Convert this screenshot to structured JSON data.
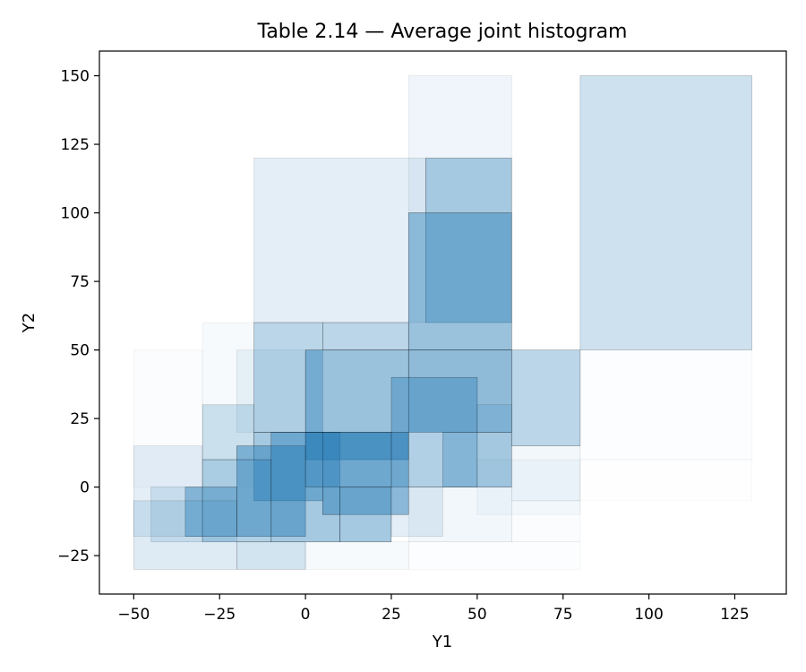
{
  "chart_data": {
    "type": "heatmap",
    "title": "Table 2.14 — Average joint histogram",
    "xlabel": "Y1",
    "ylabel": "Y2",
    "xlim": [
      -60,
      140
    ],
    "ylim": [
      -39,
      159
    ],
    "xticks": [
      -50,
      -25,
      0,
      25,
      50,
      75,
      100,
      125
    ],
    "yticks": [
      -25,
      0,
      25,
      50,
      75,
      100,
      125,
      150
    ],
    "grid": false,
    "legend": "none",
    "color": "#1f77b4",
    "bins": [
      {
        "x0": 80,
        "x1": 130,
        "y0": 50,
        "y1": 150,
        "alpha": 0.22
      },
      {
        "x0": 80,
        "x1": 130,
        "y0": 10,
        "y1": 50,
        "alpha": 0.01
      },
      {
        "x0": 80,
        "x1": 130,
        "y0": -5,
        "y1": 10,
        "alpha": 0.005
      },
      {
        "x0": 30,
        "x1": 60,
        "y0": 100,
        "y1": 150,
        "alpha": 0.07
      },
      {
        "x0": -15,
        "x1": 35,
        "y0": 60,
        "y1": 120,
        "alpha": 0.12
      },
      {
        "x0": 35,
        "x1": 60,
        "y0": 60,
        "y1": 120,
        "alpha": 0.35
      },
      {
        "x0": 30,
        "x1": 60,
        "y0": 50,
        "y1": 100,
        "alpha": 0.45
      },
      {
        "x0": 60,
        "x1": 80,
        "y0": 15,
        "y1": 50,
        "alpha": 0.3
      },
      {
        "x0": 60,
        "x1": 80,
        "y0": -5,
        "y1": 15,
        "alpha": 0.06
      },
      {
        "x0": -30,
        "x1": -15,
        "y0": 0,
        "y1": 60,
        "alpha": 0.04
      },
      {
        "x0": -20,
        "x1": 0,
        "y0": 20,
        "y1": 50,
        "alpha": 0.08
      },
      {
        "x0": -30,
        "x1": -15,
        "y0": 10,
        "y1": 30,
        "alpha": 0.2
      },
      {
        "x0": -50,
        "x1": -30,
        "y0": 0,
        "y1": 50,
        "alpha": 0.02
      },
      {
        "x0": -15,
        "x1": 5,
        "y0": 20,
        "y1": 60,
        "alpha": 0.3
      },
      {
        "x0": 5,
        "x1": 30,
        "y0": 50,
        "y1": 60,
        "alpha": 0.3
      },
      {
        "x0": 0,
        "x1": 30,
        "y0": 10,
        "y1": 50,
        "alpha": 0.45
      },
      {
        "x0": 30,
        "x1": 60,
        "y0": 20,
        "y1": 50,
        "alpha": 0.5
      },
      {
        "x0": 25,
        "x1": 50,
        "y0": 0,
        "y1": 40,
        "alpha": 0.35
      },
      {
        "x0": 40,
        "x1": 60,
        "y0": 0,
        "y1": 20,
        "alpha": 0.3
      },
      {
        "x0": -15,
        "x1": 5,
        "y0": -5,
        "y1": 20,
        "alpha": 0.4
      },
      {
        "x0": -20,
        "x1": 0,
        "y0": -18,
        "y1": 15,
        "alpha": 0.45
      },
      {
        "x0": -10,
        "x1": 10,
        "y0": -20,
        "y1": 20,
        "alpha": 0.4
      },
      {
        "x0": 5,
        "x1": 30,
        "y0": -10,
        "y1": 20,
        "alpha": 0.45
      },
      {
        "x0": 0,
        "x1": 25,
        "y0": 0,
        "y1": 20,
        "alpha": 0.35
      },
      {
        "x0": 10,
        "x1": 25,
        "y0": -20,
        "y1": 0,
        "alpha": 0.4
      },
      {
        "x0": 25,
        "x1": 40,
        "y0": -18,
        "y1": 0,
        "alpha": 0.12
      },
      {
        "x0": -30,
        "x1": -10,
        "y0": -20,
        "y1": 10,
        "alpha": 0.35
      },
      {
        "x0": -35,
        "x1": -20,
        "y0": -18,
        "y1": 0,
        "alpha": 0.4
      },
      {
        "x0": -45,
        "x1": -30,
        "y0": -20,
        "y1": 0,
        "alpha": 0.15
      },
      {
        "x0": -50,
        "x1": -30,
        "y0": -18,
        "y1": 15,
        "alpha": 0.12
      },
      {
        "x0": -50,
        "x1": -20,
        "y0": -30,
        "y1": -5,
        "alpha": 0.15
      },
      {
        "x0": -20,
        "x1": 0,
        "y0": -30,
        "y1": -20,
        "alpha": 0.2
      },
      {
        "x0": 0,
        "x1": 30,
        "y0": -30,
        "y1": -20,
        "alpha": 0.04
      },
      {
        "x0": 30,
        "x1": 80,
        "y0": -30,
        "y1": -20,
        "alpha": 0.015
      },
      {
        "x0": 30,
        "x1": 60,
        "y0": -20,
        "y1": 0,
        "alpha": 0.06
      },
      {
        "x0": 50,
        "x1": 80,
        "y0": -10,
        "y1": 10,
        "alpha": 0.04
      },
      {
        "x0": 60,
        "x1": 80,
        "y0": -20,
        "y1": -5,
        "alpha": 0.02
      },
      {
        "x0": 50,
        "x1": 60,
        "y0": 0,
        "y1": 30,
        "alpha": 0.15
      }
    ]
  }
}
